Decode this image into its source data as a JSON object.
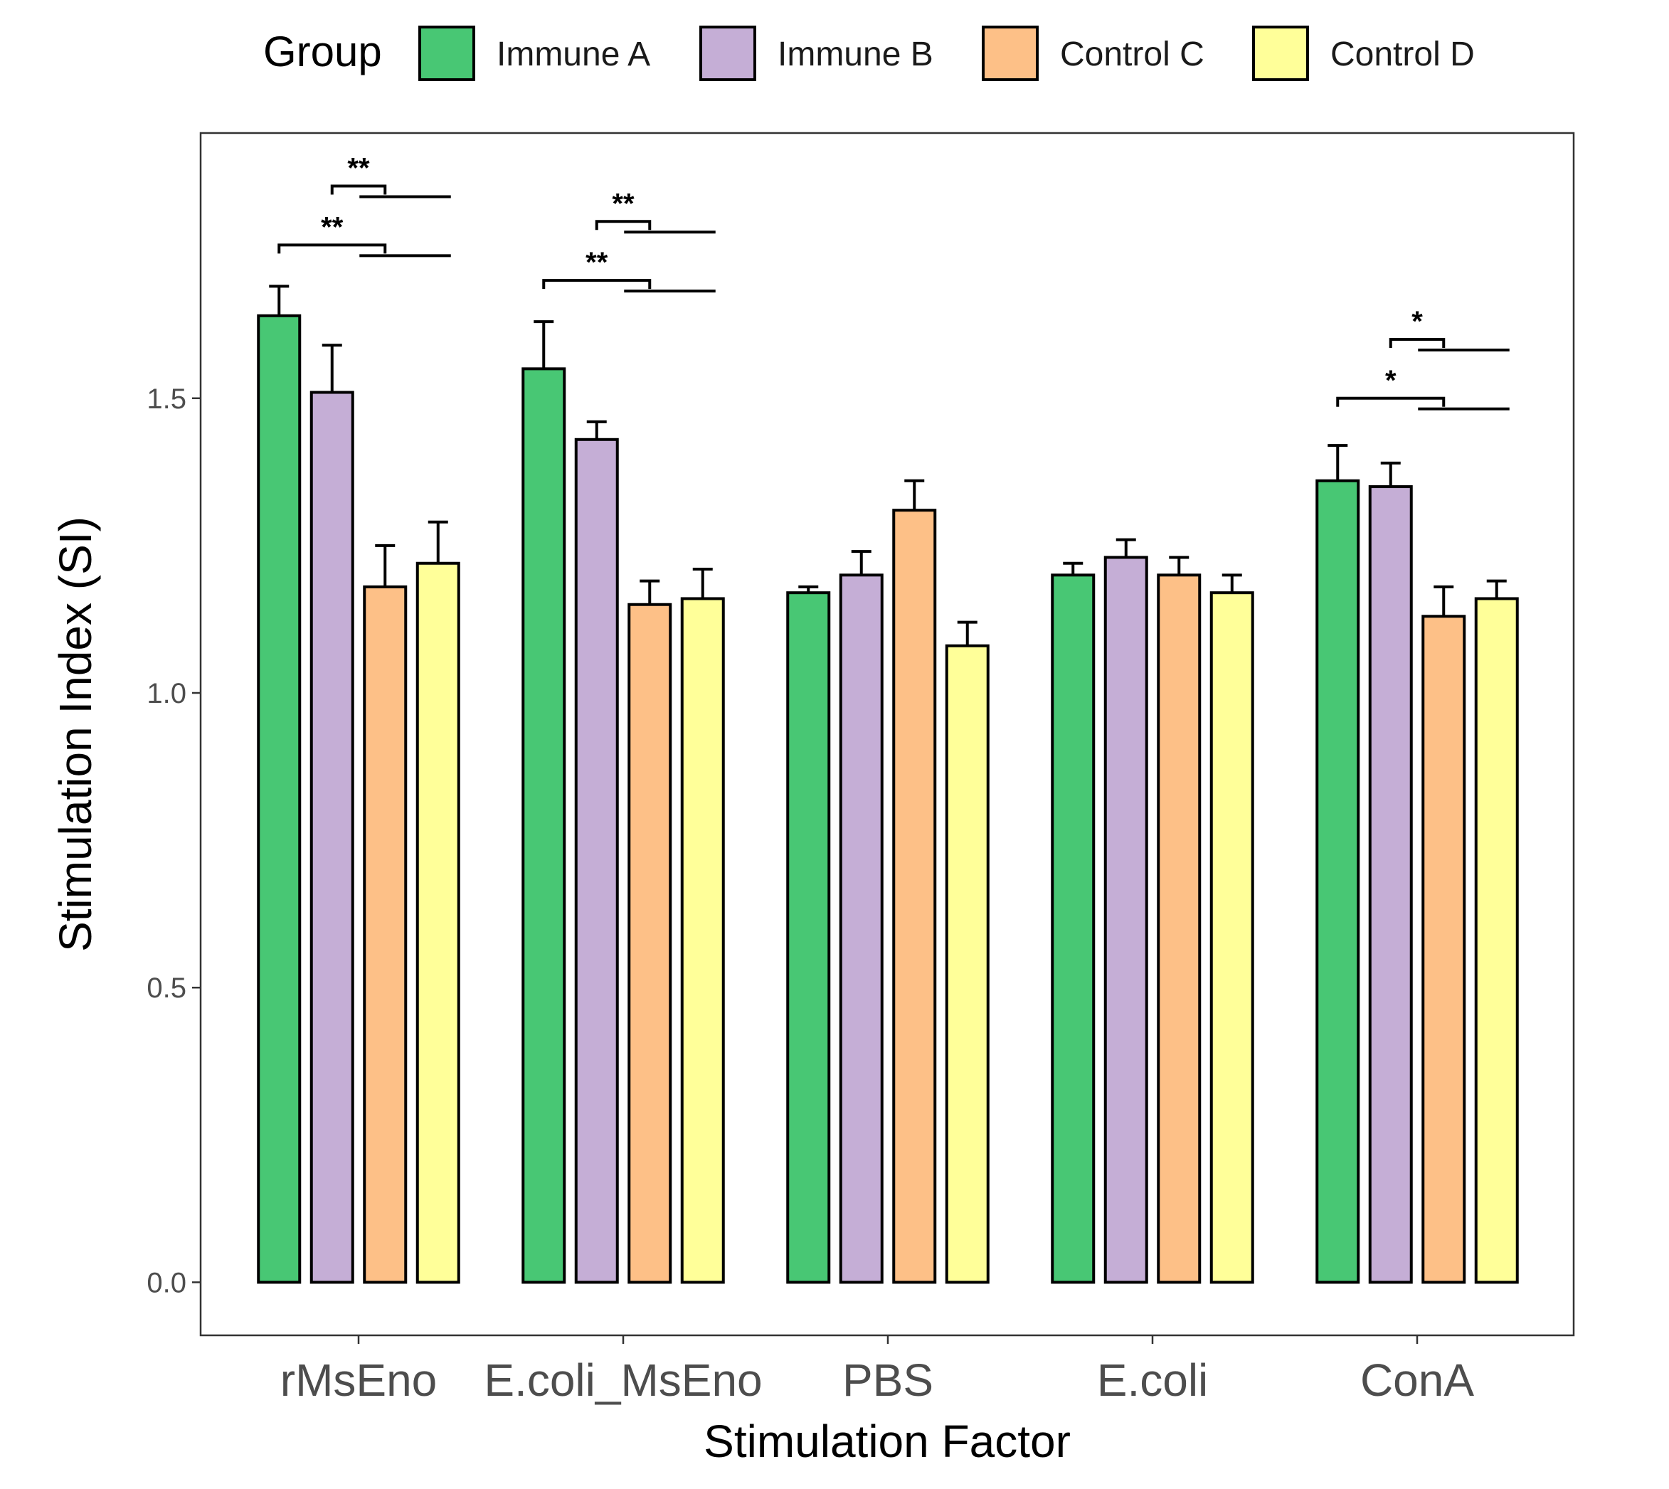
{
  "chart_data": {
    "type": "bar",
    "title": "",
    "xlabel": "Stimulation Factor",
    "ylabel": "Stimulation Index (SI)",
    "ylim": [
      -0.09,
      1.95
    ],
    "yticks": [
      0.0,
      0.5,
      1.0,
      1.5
    ],
    "ytick_labels": [
      "0.0",
      "0.5",
      "1.0",
      "1.5"
    ],
    "grid": false,
    "legend": {
      "title": "Group",
      "position": "top"
    },
    "categories": [
      "rMsEno",
      "E.coli_MsEno",
      "PBS",
      "E.coli",
      "ConA"
    ],
    "series": [
      {
        "name": "Immune A",
        "color": "#48C774",
        "values": [
          1.64,
          1.55,
          1.17,
          1.2,
          1.36
        ],
        "errors": [
          0.05,
          0.08,
          0.01,
          0.02,
          0.06
        ]
      },
      {
        "name": "Immune B",
        "color": "#C5AED6",
        "values": [
          1.51,
          1.43,
          1.2,
          1.23,
          1.35
        ],
        "errors": [
          0.08,
          0.03,
          0.04,
          0.03,
          0.04
        ]
      },
      {
        "name": "Control C",
        "color": "#FDC087",
        "values": [
          1.18,
          1.15,
          1.31,
          1.2,
          1.13
        ],
        "errors": [
          0.07,
          0.04,
          0.05,
          0.03,
          0.05
        ]
      },
      {
        "name": "Control D",
        "color": "#FFFF99",
        "values": [
          1.22,
          1.16,
          1.08,
          1.17,
          1.16
        ],
        "errors": [
          0.07,
          0.05,
          0.04,
          0.03,
          0.03
        ]
      }
    ],
    "annotations": [
      {
        "category": "rMsEno",
        "from": "Immune B",
        "to": [
          "Control C",
          "Control D"
        ],
        "level": 1.86,
        "label": "**"
      },
      {
        "category": "rMsEno",
        "from": "Immune A",
        "to": [
          "Control C",
          "Control D"
        ],
        "level": 1.76,
        "label": "**"
      },
      {
        "category": "E.coli_MsEno",
        "from": "Immune B",
        "to": [
          "Control C",
          "Control D"
        ],
        "level": 1.8,
        "label": "**"
      },
      {
        "category": "E.coli_MsEno",
        "from": "Immune A",
        "to": [
          "Control C",
          "Control D"
        ],
        "level": 1.7,
        "label": "**"
      },
      {
        "category": "ConA",
        "from": "Immune B",
        "to": [
          "Control C",
          "Control D"
        ],
        "level": 1.6,
        "label": "*"
      },
      {
        "category": "ConA",
        "from": "Immune A",
        "to": [
          "Control C",
          "Control D"
        ],
        "level": 1.5,
        "label": "*"
      }
    ]
  }
}
